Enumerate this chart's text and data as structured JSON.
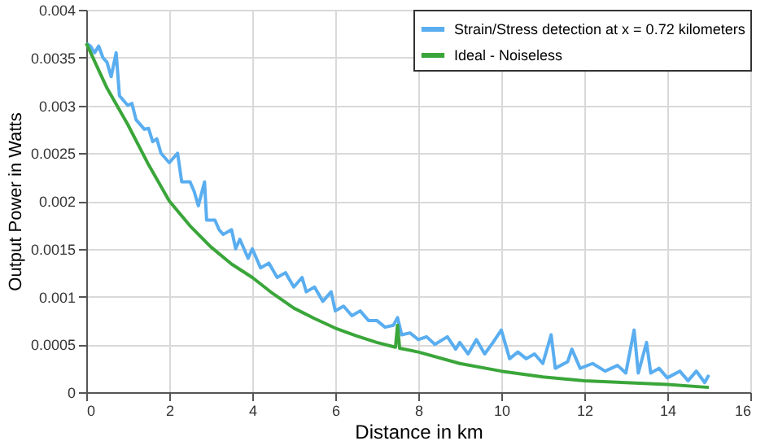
{
  "chart_data": {
    "type": "line",
    "xlabel": "Distance in km",
    "ylabel": "Output Power in Watts",
    "xlim": [
      0,
      16
    ],
    "xticks": [
      0,
      2,
      4,
      6,
      8,
      10,
      12,
      14,
      16
    ],
    "ylim": [
      0,
      0.004
    ],
    "yticks": [
      0,
      0.0005,
      0.001,
      0.0015,
      0.002,
      0.0025,
      0.003,
      0.0035,
      0.004
    ],
    "grid": true,
    "legend": "top right",
    "line_style": "solid",
    "marker": "none",
    "series": [
      {
        "name": "Strain/Stress detection at x = 0.72 kilometers",
        "color": "#5aaef0",
        "x": [
          0,
          0.1,
          0.2,
          0.3,
          0.4,
          0.5,
          0.6,
          0.72,
          0.8,
          1.0,
          1.1,
          1.2,
          1.4,
          1.5,
          1.6,
          1.7,
          1.8,
          2.0,
          2.2,
          2.3,
          2.5,
          2.6,
          2.7,
          2.85,
          2.9,
          3.1,
          3.2,
          3.3,
          3.5,
          3.6,
          3.7,
          3.9,
          4.0,
          4.2,
          4.4,
          4.6,
          4.8,
          5.0,
          5.2,
          5.3,
          5.5,
          5.7,
          5.9,
          6.0,
          6.2,
          6.4,
          6.6,
          6.8,
          7.0,
          7.2,
          7.4,
          7.5,
          7.6,
          7.8,
          8.0,
          8.2,
          8.4,
          8.7,
          8.9,
          9.0,
          9.2,
          9.4,
          9.6,
          9.8,
          10.0,
          10.2,
          10.4,
          10.6,
          10.8,
          11.0,
          11.2,
          11.3,
          11.6,
          11.7,
          11.9,
          12.2,
          12.5,
          12.8,
          13.0,
          13.2,
          13.3,
          13.5,
          13.6,
          13.8,
          14.0,
          14.3,
          14.5,
          14.7,
          14.9,
          15
        ],
        "values": [
          0.00365,
          0.00362,
          0.00355,
          0.00362,
          0.0035,
          0.00345,
          0.0033,
          0.00355,
          0.0031,
          0.003,
          0.00302,
          0.00285,
          0.00275,
          0.00276,
          0.00262,
          0.00265,
          0.0025,
          0.0024,
          0.0025,
          0.0022,
          0.0022,
          0.0021,
          0.00195,
          0.0022,
          0.0018,
          0.0018,
          0.0017,
          0.00165,
          0.0017,
          0.0015,
          0.0016,
          0.0014,
          0.0015,
          0.0013,
          0.00135,
          0.0012,
          0.00125,
          0.0011,
          0.0012,
          0.00105,
          0.0011,
          0.00095,
          0.00105,
          0.00085,
          0.0009,
          0.0008,
          0.00085,
          0.00075,
          0.00075,
          0.00068,
          0.0007,
          0.00078,
          0.0006,
          0.00062,
          0.00055,
          0.00058,
          0.0005,
          0.00058,
          0.00045,
          0.00052,
          0.0004,
          0.00055,
          0.0004,
          0.00052,
          0.00065,
          0.00035,
          0.00042,
          0.00035,
          0.0004,
          0.0003,
          0.0006,
          0.00025,
          0.00032,
          0.00045,
          0.00025,
          0.0003,
          0.00022,
          0.00028,
          0.0002,
          0.00065,
          0.0002,
          0.00052,
          0.0002,
          0.00025,
          0.00015,
          0.00022,
          0.00012,
          0.00022,
          0.0001,
          0.00018
        ]
      },
      {
        "name": "Ideal - Noiseless",
        "color": "#3aa63a",
        "x": [
          0,
          0.5,
          1,
          1.5,
          2,
          2.5,
          3,
          3.5,
          4,
          4.5,
          5,
          5.5,
          6,
          6.5,
          7,
          7.45,
          7.5,
          7.55,
          8,
          9,
          10,
          11,
          12,
          13,
          14,
          15
        ],
        "values": [
          0.00365,
          0.00318,
          0.0028,
          0.00238,
          0.002,
          0.00174,
          0.00152,
          0.00134,
          0.0012,
          0.00103,
          0.00088,
          0.00077,
          0.00067,
          0.00059,
          0.00052,
          0.00047,
          0.0007,
          0.00046,
          0.00042,
          0.0003,
          0.00022,
          0.00016,
          0.00012,
          0.0001,
          8e-05,
          5e-05
        ]
      }
    ]
  }
}
